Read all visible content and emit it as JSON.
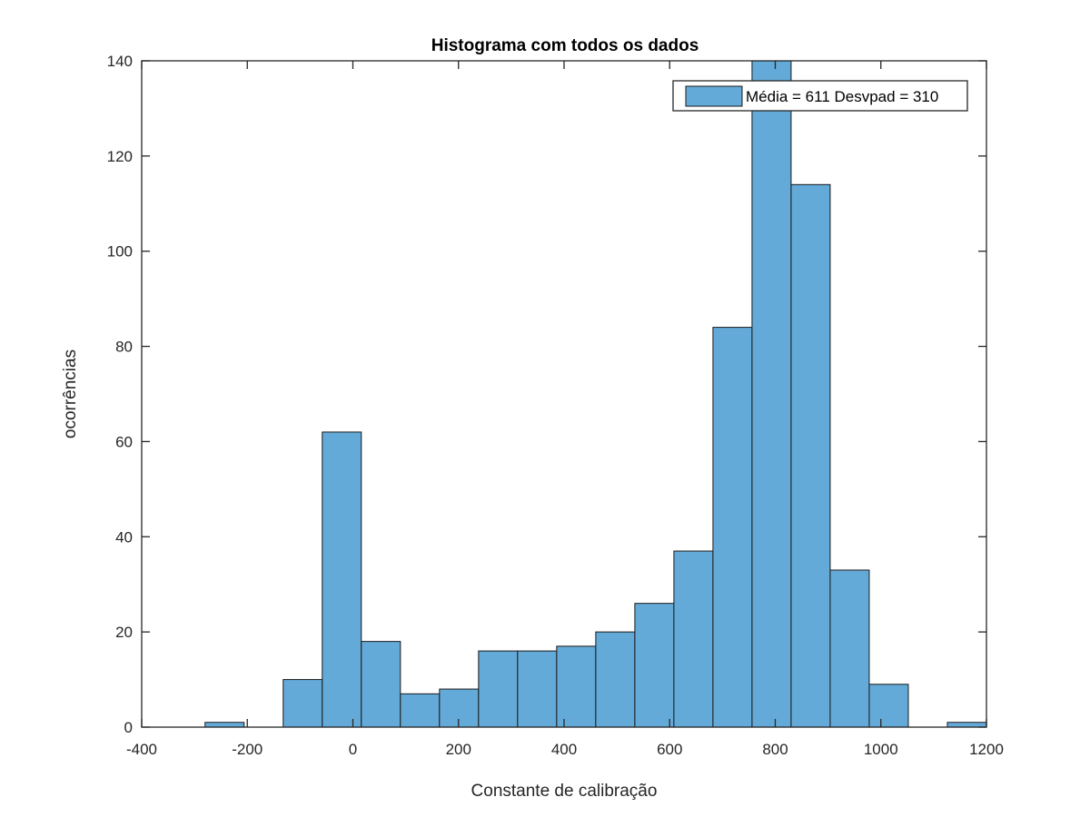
{
  "chart_data": {
    "type": "bar",
    "title": "Histograma com todos os dados",
    "xlabel": "Constante de calibração",
    "ylabel": "ocorrências",
    "xlim": [
      -400,
      1200
    ],
    "ylim": [
      0,
      140
    ],
    "x_ticks": [
      "-400",
      "-200",
      "0",
      "200",
      "400",
      "600",
      "800",
      "1000",
      "1200"
    ],
    "y_ticks": [
      "0",
      "20",
      "40",
      "60",
      "80",
      "100",
      "120",
      "140"
    ],
    "bin_width": 74,
    "bin_edges": [
      -354,
      -280,
      -206,
      -132,
      -58,
      16,
      90,
      164,
      238,
      312,
      386,
      460,
      534,
      608,
      682,
      756,
      830,
      904,
      978,
      1052,
      1126,
      1200
    ],
    "values": [
      0,
      1,
      0,
      10,
      62,
      18,
      7,
      8,
      16,
      16,
      17,
      20,
      26,
      37,
      84,
      140,
      114,
      33,
      9,
      0,
      1
    ],
    "legend": {
      "label": "Média = 611 Desvpad = 310",
      "position": "top-right"
    },
    "grid": false,
    "colors": {
      "bar_fill": "#64AAD8",
      "bar_edge": "#1a1a1a",
      "axis": "#262626"
    }
  }
}
